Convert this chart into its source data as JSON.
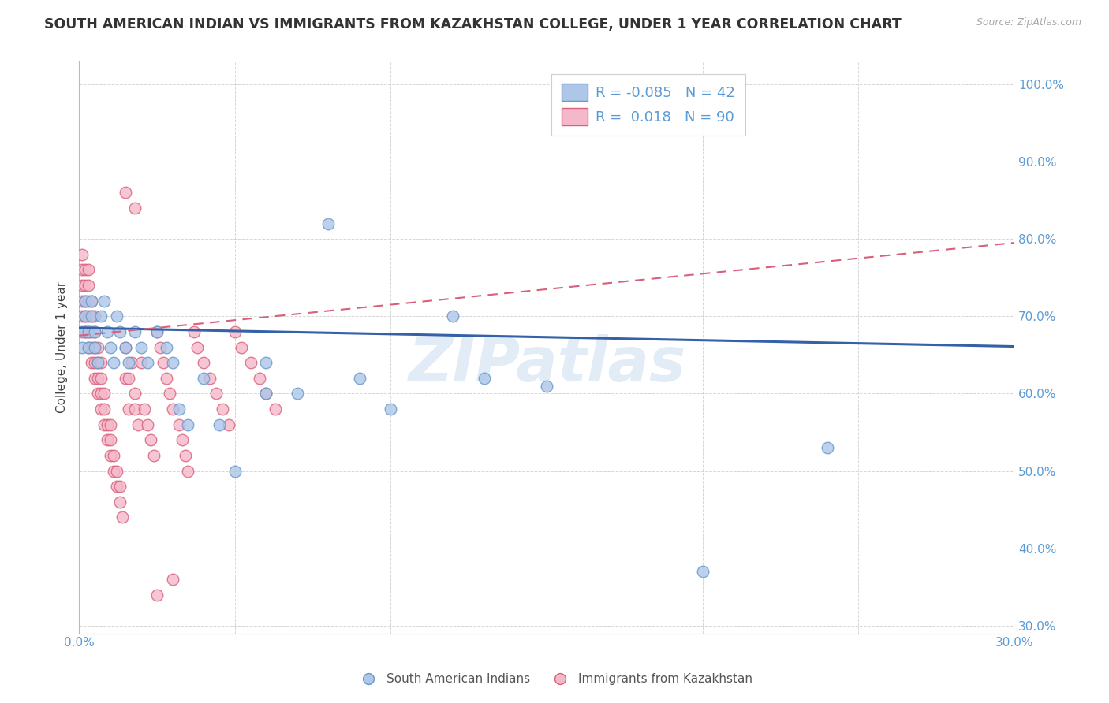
{
  "title": "SOUTH AMERICAN INDIAN VS IMMIGRANTS FROM KAZAKHSTAN COLLEGE, UNDER 1 YEAR CORRELATION CHART",
  "source": "Source: ZipAtlas.com",
  "xlabel": "",
  "ylabel": "College, Under 1 year",
  "xlim": [
    0.0,
    0.3
  ],
  "ylim": [
    0.29,
    1.03
  ],
  "xticks": [
    0.0,
    0.05,
    0.1,
    0.15,
    0.2,
    0.25,
    0.3
  ],
  "xticklabels": [
    "0.0%",
    "",
    "",
    "",
    "",
    "",
    "30.0%"
  ],
  "yticks": [
    0.3,
    0.4,
    0.5,
    0.6,
    0.7,
    0.8,
    0.9,
    1.0
  ],
  "yticklabels": [
    "30.0%",
    "40.0%",
    "50.0%",
    "60.0%",
    "70.0%",
    "80.0%",
    "90.0%",
    "100.0%"
  ],
  "blue_color": "#aec6e8",
  "pink_color": "#f5b8cb",
  "blue_edge": "#6699cc",
  "pink_edge": "#d9607a",
  "trend_blue": "#3461a8",
  "trend_pink": "#d9607a",
  "R_blue": -0.085,
  "N_blue": 42,
  "R_pink": 0.018,
  "N_pink": 90,
  "legend_label_blue": "South American Indians",
  "legend_label_pink": "Immigrants from Kazakhstan",
  "watermark": "ZIPatlas",
  "blue_intercept": 0.685,
  "blue_slope": -0.08,
  "pink_intercept": 0.675,
  "pink_slope": 0.4,
  "blue_scatter_x": [
    0.001,
    0.001,
    0.002,
    0.002,
    0.003,
    0.003,
    0.004,
    0.004,
    0.005,
    0.005,
    0.006,
    0.007,
    0.008,
    0.009,
    0.01,
    0.011,
    0.012,
    0.013,
    0.015,
    0.016,
    0.018,
    0.02,
    0.022,
    0.025,
    0.028,
    0.03,
    0.032,
    0.035,
    0.04,
    0.045,
    0.05,
    0.06,
    0.07,
    0.08,
    0.09,
    0.1,
    0.12,
    0.13,
    0.15,
    0.2,
    0.24,
    0.06
  ],
  "blue_scatter_y": [
    0.68,
    0.66,
    0.7,
    0.72,
    0.68,
    0.66,
    0.7,
    0.72,
    0.68,
    0.66,
    0.64,
    0.7,
    0.72,
    0.68,
    0.66,
    0.64,
    0.7,
    0.68,
    0.66,
    0.64,
    0.68,
    0.66,
    0.64,
    0.68,
    0.66,
    0.64,
    0.58,
    0.56,
    0.62,
    0.56,
    0.5,
    0.6,
    0.6,
    0.82,
    0.62,
    0.58,
    0.7,
    0.62,
    0.61,
    0.37,
    0.53,
    0.64
  ],
  "pink_scatter_x": [
    0.001,
    0.001,
    0.001,
    0.001,
    0.001,
    0.002,
    0.002,
    0.002,
    0.002,
    0.002,
    0.002,
    0.003,
    0.003,
    0.003,
    0.003,
    0.003,
    0.003,
    0.004,
    0.004,
    0.004,
    0.004,
    0.004,
    0.005,
    0.005,
    0.005,
    0.005,
    0.005,
    0.006,
    0.006,
    0.006,
    0.006,
    0.007,
    0.007,
    0.007,
    0.007,
    0.008,
    0.008,
    0.008,
    0.009,
    0.009,
    0.01,
    0.01,
    0.01,
    0.011,
    0.011,
    0.012,
    0.012,
    0.013,
    0.013,
    0.014,
    0.015,
    0.015,
    0.016,
    0.016,
    0.017,
    0.018,
    0.018,
    0.019,
    0.02,
    0.021,
    0.022,
    0.023,
    0.024,
    0.025,
    0.026,
    0.027,
    0.028,
    0.029,
    0.03,
    0.032,
    0.033,
    0.034,
    0.035,
    0.037,
    0.038,
    0.04,
    0.042,
    0.044,
    0.046,
    0.048,
    0.05,
    0.052,
    0.055,
    0.058,
    0.06,
    0.063,
    0.015,
    0.018,
    0.03,
    0.025
  ],
  "pink_scatter_y": [
    0.7,
    0.72,
    0.74,
    0.76,
    0.78,
    0.68,
    0.7,
    0.72,
    0.74,
    0.76,
    0.68,
    0.66,
    0.68,
    0.7,
    0.72,
    0.74,
    0.76,
    0.64,
    0.66,
    0.68,
    0.7,
    0.72,
    0.62,
    0.64,
    0.66,
    0.68,
    0.7,
    0.6,
    0.62,
    0.64,
    0.66,
    0.58,
    0.6,
    0.62,
    0.64,
    0.56,
    0.58,
    0.6,
    0.54,
    0.56,
    0.52,
    0.54,
    0.56,
    0.5,
    0.52,
    0.48,
    0.5,
    0.46,
    0.48,
    0.44,
    0.62,
    0.66,
    0.58,
    0.62,
    0.64,
    0.58,
    0.6,
    0.56,
    0.64,
    0.58,
    0.56,
    0.54,
    0.52,
    0.68,
    0.66,
    0.64,
    0.62,
    0.6,
    0.58,
    0.56,
    0.54,
    0.52,
    0.5,
    0.68,
    0.66,
    0.64,
    0.62,
    0.6,
    0.58,
    0.56,
    0.68,
    0.66,
    0.64,
    0.62,
    0.6,
    0.58,
    0.86,
    0.84,
    0.36,
    0.34
  ]
}
